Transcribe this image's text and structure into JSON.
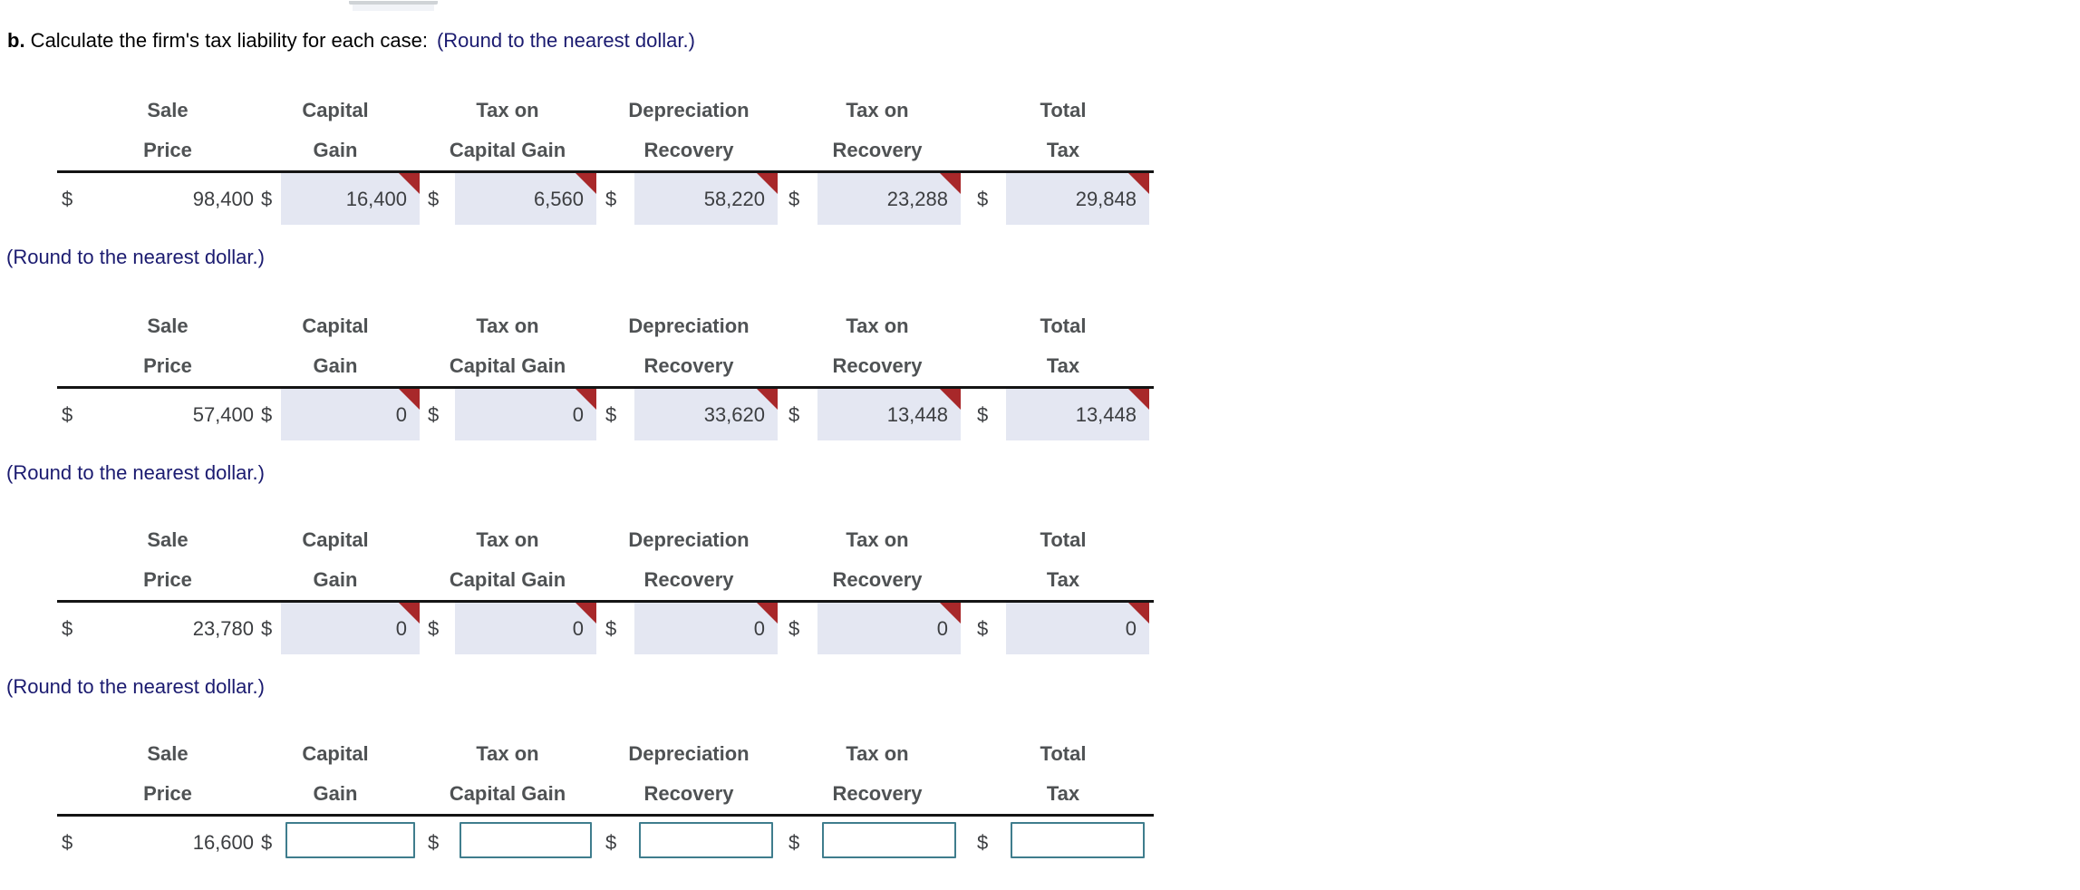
{
  "title": {
    "prefix": "b.",
    "body": " Calculate the firm's tax liability for each case:",
    "note": "(Round to the nearest dollar.)"
  },
  "round_note": "(Round to the nearest dollar.)",
  "currency": "$",
  "columns": [
    {
      "line1": "Sale",
      "line2": "Price"
    },
    {
      "line1": "Capital",
      "line2": "Gain"
    },
    {
      "line1": "Tax on",
      "line2": "Capital Gain"
    },
    {
      "line1": "Depreciation",
      "line2": "Recovery"
    },
    {
      "line1": "Tax on",
      "line2": "Recovery"
    },
    {
      "line1": "Total",
      "line2": "Tax"
    }
  ],
  "tables": [
    {
      "sale_price": "98,400",
      "capital_gain": "16,400",
      "tax_on_capital_gain": "6,560",
      "depreciation_recovery": "58,220",
      "tax_on_recovery": "23,288",
      "total_tax": "29,848",
      "answered": true
    },
    {
      "sale_price": "57,400",
      "capital_gain": "0",
      "tax_on_capital_gain": "0",
      "depreciation_recovery": "33,620",
      "tax_on_recovery": "13,448",
      "total_tax": "13,448",
      "answered": true
    },
    {
      "sale_price": "23,780",
      "capital_gain": "0",
      "tax_on_capital_gain": "0",
      "depreciation_recovery": "0",
      "tax_on_recovery": "0",
      "total_tax": "0",
      "answered": true
    },
    {
      "sale_price": "16,600",
      "capital_gain": "",
      "tax_on_capital_gain": "",
      "depreciation_recovery": "",
      "tax_on_recovery": "",
      "total_tax": "",
      "answered": false
    }
  ],
  "colors": {
    "note_navy": "#1b1b70",
    "answered_cell_bg": "#e4e7f2",
    "answered_flag_red": "#a8282a",
    "input_border_teal": "#3f7d8d",
    "header_text": "#4f5254",
    "value_text": "#3c3e41",
    "table_rule": "#141414"
  }
}
